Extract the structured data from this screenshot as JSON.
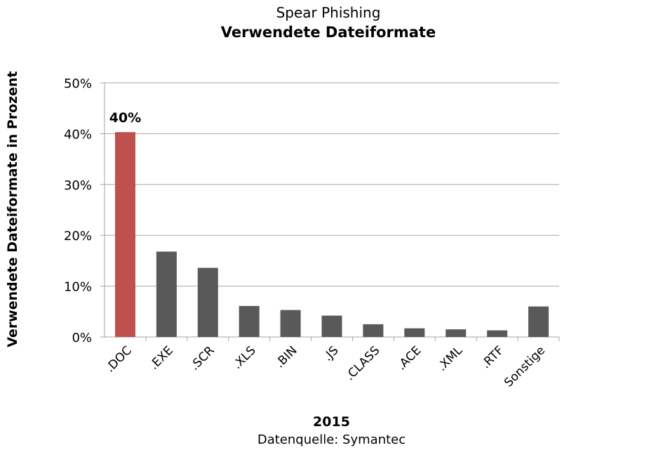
{
  "chart_data": {
    "type": "bar",
    "subtitle": "Spear Phishing",
    "title": "Verwendete Dateiformate",
    "xlabel": "2015",
    "ylabel": "Verwendete Dateiformate in Prozent",
    "source": "Datenquelle: Symantec",
    "categories": [
      ".DOC",
      ".EXE",
      ".SCR",
      ".XLS",
      ".BIN",
      ".JS",
      ".CLASS",
      ".ACE",
      ".XML",
      ".RTF",
      "Sonstige"
    ],
    "values": [
      40.3,
      16.8,
      13.6,
      6.1,
      5.3,
      4.2,
      2.5,
      1.7,
      1.5,
      1.3,
      6.0
    ],
    "ylim": [
      0,
      50
    ],
    "yticks": [
      "0%",
      "10%",
      "20%",
      "30%",
      "40%",
      "50%"
    ],
    "grid": true,
    "highlight_index": 0,
    "colors": {
      "highlight": "#c0504d",
      "bar": "#595959",
      "grid": "#a6a6a6"
    },
    "annotations": [
      {
        "index": 0,
        "text": "40%"
      }
    ]
  }
}
